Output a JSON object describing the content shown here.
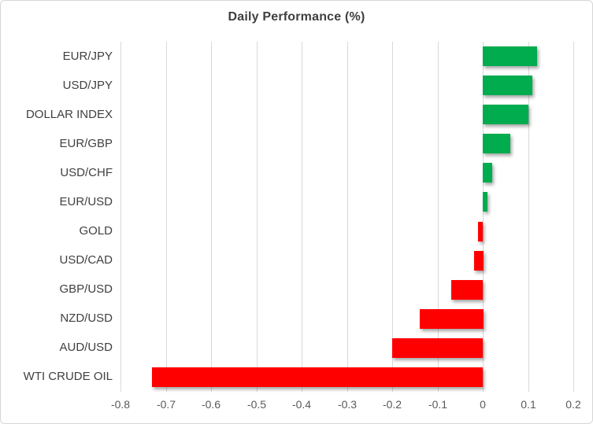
{
  "chart_data": {
    "type": "bar",
    "orientation": "horizontal",
    "title": "Daily Performance (%)",
    "categories": [
      "EUR/JPY",
      "USD/JPY",
      "DOLLAR INDEX",
      "EUR/GBP",
      "USD/CHF",
      "EUR/USD",
      "GOLD",
      "USD/CAD",
      "GBP/USD",
      "NZD/USD",
      "AUD/USD",
      "WTI CRUDE OIL"
    ],
    "values": [
      0.12,
      0.11,
      0.1,
      0.06,
      0.02,
      0.01,
      -0.01,
      -0.02,
      -0.07,
      -0.14,
      -0.2,
      -0.73
    ],
    "xlabel": "",
    "ylabel": "",
    "xlim": [
      -0.8,
      0.2
    ],
    "xticks": [
      -0.8,
      -0.7,
      -0.6,
      -0.5,
      -0.4,
      -0.3,
      -0.2,
      -0.1,
      0,
      0.1,
      0.2
    ],
    "xtick_labels": [
      "-0.8",
      "-0.7",
      "-0.6",
      "-0.5",
      "-0.4",
      "-0.3",
      "-0.2",
      "-0.1",
      "0",
      "0.1",
      "0.2"
    ],
    "grid": true,
    "legend": false,
    "positive_color": "#00ac4e",
    "negative_color": "#ff0000"
  },
  "colors": {
    "grid": "#d9d9d9",
    "title_text": "#3f3f3f",
    "label_text": "#404040",
    "tick_text": "#595959",
    "card_border": "#d6d6d6",
    "background": "#ffffff"
  }
}
